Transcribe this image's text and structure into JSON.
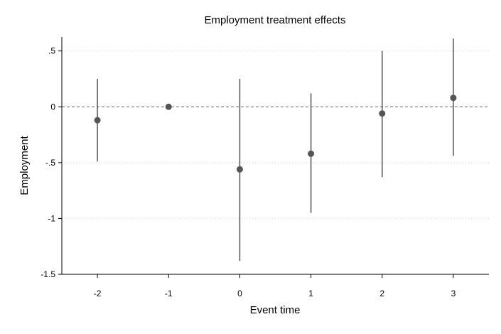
{
  "chart_data": {
    "type": "scatter",
    "title": "Employment treatment effects",
    "xlabel": "Event time",
    "ylabel": "Employment",
    "x_ticks": [
      -2,
      -1,
      0,
      1,
      2,
      3
    ],
    "x_tick_labels": [
      "-2",
      "-1",
      "0",
      "1",
      "2",
      "3"
    ],
    "y_ticks": [
      0.5,
      0,
      -0.5,
      -1,
      -1.5
    ],
    "y_tick_labels": [
      ".5",
      "0",
      "-.5",
      "-1",
      "-1.5"
    ],
    "xlim": [
      -2.5,
      3.5
    ],
    "ylim": [
      -1.5,
      0.6
    ],
    "grid": true,
    "reference_line_y": 0,
    "series": [
      {
        "x": [
          -2,
          -1,
          0,
          1,
          2,
          3
        ],
        "y": [
          -0.12,
          0.0,
          -0.56,
          -0.42,
          -0.06,
          0.08
        ],
        "ci_low": [
          -0.49,
          0.0,
          -1.38,
          -0.95,
          -0.63,
          -0.44
        ],
        "ci_high": [
          0.25,
          0.0,
          0.25,
          0.12,
          0.5,
          0.61
        ]
      }
    ],
    "colors": {
      "marker": "#555555",
      "ci": "#555555",
      "grid": "#d0d0d0",
      "refline": "#666666",
      "axis": "#000000"
    }
  }
}
